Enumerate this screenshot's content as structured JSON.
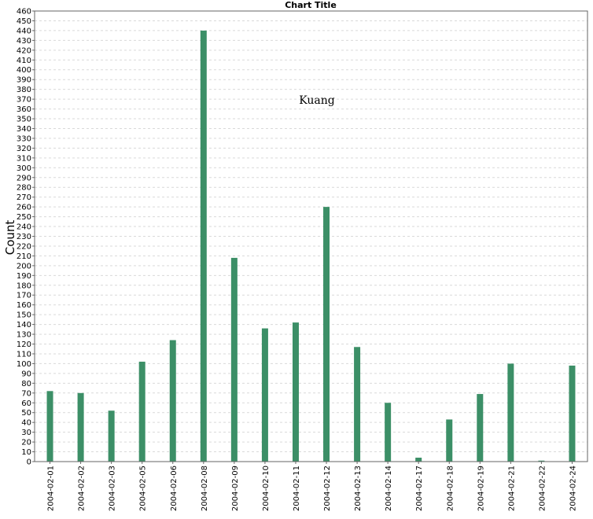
{
  "chart_data": {
    "type": "bar",
    "title": "Chart Title",
    "xlabel": "",
    "ylabel": "Count",
    "annotation": "Kuang",
    "categories": [
      "2004-02-01",
      "2004-02-02",
      "2004-02-03",
      "2004-02-05",
      "2004-02-06",
      "2004-02-08",
      "2004-02-09",
      "2004-02-10",
      "2004-02-11",
      "2004-02-12",
      "2004-02-13",
      "2004-02-14",
      "2004-02-17",
      "2004-02-18",
      "2004-02-19",
      "2004-02-21",
      "2004-02-22",
      "2004-02-24"
    ],
    "values": [
      72,
      70,
      52,
      102,
      124,
      440,
      208,
      136,
      142,
      260,
      117,
      60,
      4,
      43,
      69,
      100,
      1,
      98
    ],
    "ylim": [
      0,
      460
    ],
    "ytick_step": 10,
    "grid": true,
    "bar_color": "#3c8f67"
  }
}
